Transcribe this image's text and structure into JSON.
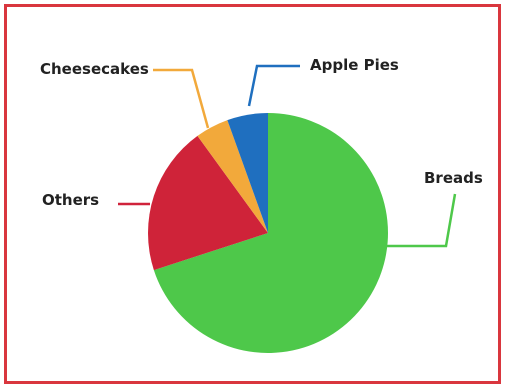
{
  "chart_data": {
    "type": "pie",
    "title": "",
    "start_angle_deg": 0,
    "direction": "clockwise",
    "legend": "none",
    "slices": [
      {
        "label": "Breads",
        "value": 70,
        "color": "#4ec84a",
        "line_color": "#4ec84a"
      },
      {
        "label": "Others",
        "value": 20,
        "color": "#cf2339",
        "line_color": "#d0223b"
      },
      {
        "label": "Cheesecakes",
        "value": 4.5,
        "color": "#f2a93b",
        "line_color": "#f2a93b"
      },
      {
        "label": "Apple Pies",
        "value": 5.5,
        "color": "#1f6fbf",
        "line_color": "#1f6fbf"
      }
    ]
  }
}
